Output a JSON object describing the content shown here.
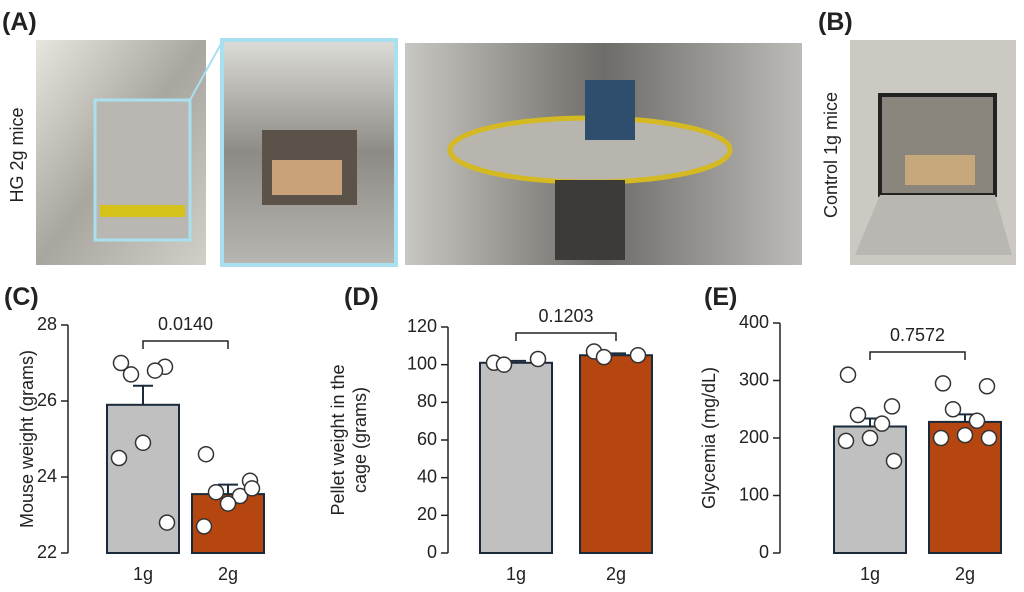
{
  "figure": {
    "panel_a": "(A)",
    "panel_b": "(B)",
    "hg_label": "HG 2g mice",
    "control_label": "Control 1g mice"
  },
  "chart_data": [
    {
      "type": "bar",
      "panel_label": "(C)",
      "ylabel": [
        "Mouse weight (grams)"
      ],
      "categories": [
        "1g",
        "2g"
      ],
      "colors": [
        "#c0c0c0",
        "#b5460f"
      ],
      "values": [
        25.9,
        23.55
      ],
      "errors": [
        0.5,
        0.25
      ],
      "points": [
        [
          27.0,
          26.9,
          26.7,
          26.8,
          24.9,
          24.5,
          22.8
        ],
        [
          24.6,
          23.9,
          23.6,
          23.5,
          23.3,
          22.7,
          23.7
        ]
      ],
      "ylim": [
        22,
        28
      ],
      "yticks": [
        22,
        24,
        26,
        28
      ],
      "p_value": "0.0140"
    },
    {
      "type": "bar",
      "panel_label": "(D)",
      "ylabel": [
        "Pellet weight in the",
        "cage (grams)"
      ],
      "categories": [
        "1g",
        "2g"
      ],
      "colors": [
        "#c0c0c0",
        "#b5460f"
      ],
      "values": [
        101,
        105
      ],
      "errors": [
        1,
        1
      ],
      "points": [
        [
          101,
          103,
          100
        ],
        [
          107,
          105,
          104
        ]
      ],
      "ylim": [
        0,
        120
      ],
      "yticks": [
        0,
        20,
        40,
        60,
        80,
        100,
        120
      ],
      "p_value": "0.1203"
    },
    {
      "type": "bar",
      "panel_label": "(E)",
      "ylabel": [
        "Glycemia (mg/dL)"
      ],
      "categories": [
        "1g",
        "2g"
      ],
      "colors": [
        "#c0c0c0",
        "#b5460f"
      ],
      "values": [
        220,
        228
      ],
      "errors": [
        14,
        13
      ],
      "points": [
        [
          310,
          255,
          240,
          225,
          200,
          195,
          160
        ],
        [
          295,
          290,
          250,
          230,
          205,
          200,
          200
        ]
      ],
      "ylim": [
        0,
        400
      ],
      "yticks": [
        0,
        100,
        200,
        300,
        400
      ],
      "p_value": "0.7572"
    }
  ]
}
